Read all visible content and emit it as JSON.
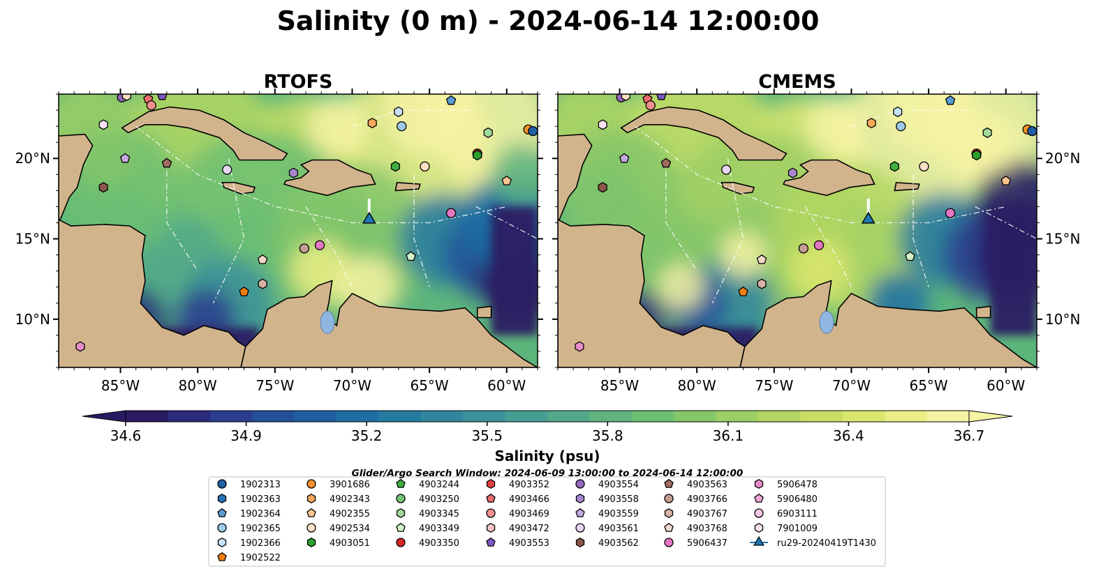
{
  "title": "Salinity (0 m) - 2024-06-14 12:00:00",
  "chart_data": [
    {
      "type": "heatmap",
      "title": "RTOFS",
      "lon_range": [
        -89,
        -58
      ],
      "lat_range": [
        7,
        24
      ],
      "x_ticks": [
        "85°W",
        "80°W",
        "75°W",
        "70°W",
        "65°W",
        "60°W"
      ],
      "x_tick_values": [
        -85,
        -80,
        -75,
        -70,
        -65,
        -60
      ],
      "y_ticks": [
        "20°N",
        "15°N",
        "10°N"
      ],
      "y_tick_values": [
        20,
        15,
        10
      ],
      "y_ticks_side": "left"
    },
    {
      "type": "heatmap",
      "title": "CMEMS",
      "lon_range": [
        -89,
        -58
      ],
      "lat_range": [
        7,
        24
      ],
      "x_ticks": [
        "85°W",
        "80°W",
        "75°W",
        "70°W",
        "65°W",
        "60°W"
      ],
      "x_tick_values": [
        -85,
        -80,
        -75,
        -70,
        -65,
        -60
      ],
      "y_ticks": [
        "20°N",
        "15°N",
        "10°N"
      ],
      "y_tick_values": [
        20,
        15,
        10
      ],
      "y_ticks_side": "right"
    }
  ],
  "colorbar": {
    "label": "Salinity (psu)",
    "vmin": 34.6,
    "vmax": 36.7,
    "ticks": [
      "34.6",
      "34.9",
      "35.2",
      "35.5",
      "35.8",
      "36.1",
      "36.4",
      "36.7"
    ],
    "colors": [
      "#2a1a63",
      "#2c2a7a",
      "#2b3d8e",
      "#24509a",
      "#1e60a0",
      "#1c6ea3",
      "#257aa0",
      "#2f869e",
      "#3b929a",
      "#469e93",
      "#52a98a",
      "#5fb47f",
      "#6cbf72",
      "#84c76a",
      "#9ccf65",
      "#b3d762",
      "#c8df64",
      "#dae76e",
      "#ebef86",
      "#f6f3a3"
    ]
  },
  "search_window": "Glider/Argo Search Window: 2024-06-09 13:00:00 to 2024-06-14 12:00:00",
  "legend": [
    {
      "label": "1902313",
      "shape": "circle",
      "color": "#1f5fa6"
    },
    {
      "label": "1902363",
      "shape": "hexagon",
      "color": "#2a72b8"
    },
    {
      "label": "1902364",
      "shape": "pentagon",
      "color": "#5b9bd5"
    },
    {
      "label": "1902365",
      "shape": "circle",
      "color": "#9ecae9"
    },
    {
      "label": "1902366",
      "shape": "hexagon",
      "color": "#c6e2f7"
    },
    {
      "label": "1902522",
      "shape": "pentagon",
      "color": "#f07f0e"
    },
    {
      "label": "3901686",
      "shape": "circle",
      "color": "#f5922b"
    },
    {
      "label": "4902343",
      "shape": "hexagon",
      "color": "#f7a85a"
    },
    {
      "label": "4902355",
      "shape": "pentagon",
      "color": "#f9c48e"
    },
    {
      "label": "4902534",
      "shape": "circle",
      "color": "#fbe0c4"
    },
    {
      "label": "4903051",
      "shape": "hexagon",
      "color": "#2ca02c"
    },
    {
      "label": "4903244",
      "shape": "pentagon",
      "color": "#3fae3f"
    },
    {
      "label": "4903250",
      "shape": "circle",
      "color": "#74c476"
    },
    {
      "label": "4903345",
      "shape": "hexagon",
      "color": "#a1d99b"
    },
    {
      "label": "4903349",
      "shape": "pentagon",
      "color": "#d4f2c7"
    },
    {
      "label": "4903350",
      "shape": "circle",
      "color": "#d62728"
    },
    {
      "label": "4903352",
      "shape": "hexagon",
      "color": "#e03e3e"
    },
    {
      "label": "4903466",
      "shape": "pentagon",
      "color": "#ec6d6d"
    },
    {
      "label": "4903469",
      "shape": "circle",
      "color": "#f29090"
    },
    {
      "label": "4903472",
      "shape": "hexagon",
      "color": "#f8c4c4"
    },
    {
      "label": "4903553",
      "shape": "pentagon",
      "color": "#7e57c2"
    },
    {
      "label": "4903554",
      "shape": "circle",
      "color": "#9467bd"
    },
    {
      "label": "4903558",
      "shape": "hexagon",
      "color": "#a987d0"
    },
    {
      "label": "4903559",
      "shape": "pentagon",
      "color": "#c3a9e0"
    },
    {
      "label": "4903561",
      "shape": "circle",
      "color": "#e5d6f3"
    },
    {
      "label": "4903562",
      "shape": "hexagon",
      "color": "#8c564b"
    },
    {
      "label": "4903563",
      "shape": "pentagon",
      "color": "#9e6b60"
    },
    {
      "label": "4903766",
      "shape": "circle",
      "color": "#c49c94"
    },
    {
      "label": "4903767",
      "shape": "hexagon",
      "color": "#d8b2a6"
    },
    {
      "label": "4903768",
      "shape": "pentagon",
      "color": "#f1d9c9"
    },
    {
      "label": "5906437",
      "shape": "circle",
      "color": "#e377c2"
    },
    {
      "label": "5906478",
      "shape": "hexagon",
      "color": "#e88ccb"
    },
    {
      "label": "5906480",
      "shape": "pentagon",
      "color": "#f0a6d7"
    },
    {
      "label": "6903111",
      "shape": "circle",
      "color": "#f7c6e6"
    },
    {
      "label": "7901009",
      "shape": "hexagon",
      "color": "#fbe3f3"
    },
    {
      "label": "ru29-20240419T1430",
      "shape": "triangle-line",
      "color": "#1f77b4"
    }
  ],
  "floats": [
    {
      "lon": -84.9,
      "lat": 23.8,
      "shape": "circle",
      "color": "#9467bd"
    },
    {
      "lon": -84.6,
      "lat": 23.9,
      "shape": "hexagon",
      "color": "#fbe0c4"
    },
    {
      "lon": -83.2,
      "lat": 23.7,
      "shape": "pentagon",
      "color": "#ec6d6d"
    },
    {
      "lon": -83.0,
      "lat": 23.3,
      "shape": "circle",
      "color": "#f29090"
    },
    {
      "lon": -82.3,
      "lat": 23.9,
      "shape": "pentagon",
      "color": "#7e57c2"
    },
    {
      "lon": -86.1,
      "lat": 22.1,
      "shape": "hexagon",
      "color": "#fbe3f3"
    },
    {
      "lon": -84.7,
      "lat": 20.0,
      "shape": "pentagon",
      "color": "#c3a9e0"
    },
    {
      "lon": -82.0,
      "lat": 19.7,
      "shape": "pentagon",
      "color": "#9e6b60"
    },
    {
      "lon": -86.1,
      "lat": 18.2,
      "shape": "hexagon",
      "color": "#8c564b"
    },
    {
      "lon": -78.1,
      "lat": 19.3,
      "shape": "circle",
      "color": "#e5d6f3"
    },
    {
      "lon": -73.8,
      "lat": 19.1,
      "shape": "hexagon",
      "color": "#a987d0"
    },
    {
      "lon": -68.7,
      "lat": 22.2,
      "shape": "hexagon",
      "color": "#f7a85a"
    },
    {
      "lon": -67.0,
      "lat": 22.9,
      "shape": "hexagon",
      "color": "#c6e2f7"
    },
    {
      "lon": -66.8,
      "lat": 22.0,
      "shape": "circle",
      "color": "#9ecae9"
    },
    {
      "lon": -63.6,
      "lat": 23.6,
      "shape": "pentagon",
      "color": "#5b9bd5"
    },
    {
      "lon": -61.2,
      "lat": 21.6,
      "shape": "hexagon",
      "color": "#a1d99b"
    },
    {
      "lon": -58.6,
      "lat": 21.8,
      "shape": "circle",
      "color": "#f5922b"
    },
    {
      "lon": -58.3,
      "lat": 21.7,
      "shape": "circle",
      "color": "#1f5fa6"
    },
    {
      "lon": -61.9,
      "lat": 20.3,
      "shape": "circle",
      "color": "#d62728"
    },
    {
      "lon": -61.9,
      "lat": 20.2,
      "shape": "hexagon",
      "color": "#2ca02c"
    },
    {
      "lon": -67.2,
      "lat": 19.5,
      "shape": "hexagon",
      "color": "#3fae3f"
    },
    {
      "lon": -65.3,
      "lat": 19.5,
      "shape": "circle",
      "color": "#fbe0c4"
    },
    {
      "lon": -60.0,
      "lat": 18.6,
      "shape": "pentagon",
      "color": "#f9c48e"
    },
    {
      "lon": -63.6,
      "lat": 16.6,
      "shape": "circle",
      "color": "#e377c2"
    },
    {
      "lon": -73.1,
      "lat": 14.4,
      "shape": "circle",
      "color": "#c49c94"
    },
    {
      "lon": -72.1,
      "lat": 14.6,
      "shape": "circle",
      "color": "#e377c2"
    },
    {
      "lon": -75.8,
      "lat": 13.7,
      "shape": "pentagon",
      "color": "#f1d9c9"
    },
    {
      "lon": -75.8,
      "lat": 12.2,
      "shape": "hexagon",
      "color": "#d8b2a6"
    },
    {
      "lon": -77.0,
      "lat": 11.7,
      "shape": "pentagon",
      "color": "#f07f0e"
    },
    {
      "lon": -66.2,
      "lat": 13.9,
      "shape": "pentagon",
      "color": "#d4f2c7"
    },
    {
      "lon": -87.6,
      "lat": 8.3,
      "shape": "hexagon",
      "color": "#e88ccb"
    }
  ],
  "glider": {
    "lon": -68.9,
    "lat": 16.2,
    "color": "#1f77b4"
  }
}
